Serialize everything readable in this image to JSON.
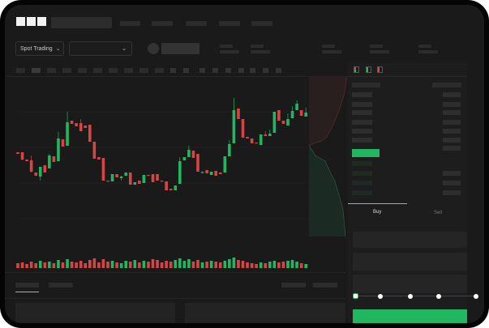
{
  "header": {
    "logo": "OKX"
  },
  "toolbar": {
    "market_type": "Spot Trading",
    "market_type_chevron": "⌄",
    "pair_chevron": "⌄"
  },
  "orderbook": {
    "view_icons": [
      "orderbook-both-icon",
      "orderbook-bids-icon",
      "orderbook-asks-icon"
    ]
  },
  "trade": {
    "tabs": [
      "Buy",
      "Sell"
    ],
    "active_tab": "Buy",
    "slider_percent": 0,
    "slider_stops": [
      0,
      25,
      50,
      75,
      100
    ]
  },
  "colors": {
    "up": "#22b660",
    "down": "#d64545",
    "background": "#1a1a1a",
    "accent": "#22b660"
  },
  "chart_data": {
    "type": "candlestick",
    "grid": true,
    "candles": [
      [
        118,
        116,
        118,
        116
      ],
      [
        118,
        109,
        118,
        108
      ],
      [
        109,
        107,
        109,
        107
      ],
      [
        108,
        94,
        114,
        93
      ],
      [
        93,
        89,
        93,
        89
      ],
      [
        88,
        100,
        100,
        83
      ],
      [
        102,
        93,
        102,
        93
      ],
      [
        98,
        114,
        116,
        98
      ],
      [
        113,
        106,
        113,
        106
      ],
      [
        107,
        135,
        143,
        107
      ],
      [
        134,
        125,
        134,
        125
      ],
      [
        126,
        155,
        168,
        126
      ],
      [
        157,
        153,
        157,
        153
      ],
      [
        154,
        150,
        154,
        150
      ],
      [
        154,
        144,
        159,
        144
      ],
      [
        151,
        148,
        151,
        148
      ],
      [
        152,
        131,
        152,
        131
      ],
      [
        131,
        110,
        131,
        110
      ],
      [
        112,
        109,
        112,
        109
      ],
      [
        111,
        83,
        111,
        83
      ],
      [
        83,
        82,
        83,
        82
      ],
      [
        82,
        91,
        91,
        82
      ],
      [
        91,
        87,
        91,
        87
      ],
      [
        86,
        88,
        89,
        83
      ],
      [
        89,
        93,
        93,
        89
      ],
      [
        93,
        78,
        93,
        78
      ],
      [
        78,
        81,
        81,
        78
      ],
      [
        83,
        79,
        83,
        79
      ],
      [
        80,
        90,
        90,
        80
      ],
      [
        90,
        89,
        90,
        89
      ],
      [
        91,
        81,
        91,
        81
      ],
      [
        91,
        83,
        91,
        83
      ],
      [
        83,
        82,
        83,
        82
      ],
      [
        82,
        71,
        82,
        71
      ],
      [
        73,
        71,
        73,
        71
      ],
      [
        71,
        77,
        77,
        71
      ],
      [
        79,
        107,
        112,
        79
      ],
      [
        108,
        112,
        112,
        108
      ],
      [
        112,
        121,
        126,
        112
      ],
      [
        120,
        111,
        120,
        111
      ],
      [
        116,
        94,
        116,
        94
      ],
      [
        93,
        93.5,
        95,
        92
      ],
      [
        96,
        92,
        96,
        92
      ],
      [
        90,
        94,
        94,
        90
      ],
      [
        95,
        89,
        95,
        89
      ],
      [
        93,
        91,
        93,
        91
      ],
      [
        93,
        113,
        113,
        93
      ],
      [
        113,
        128,
        133,
        113
      ],
      [
        129,
        170,
        185,
        129
      ],
      [
        172,
        159,
        172,
        159
      ],
      [
        159,
        136,
        159,
        136
      ],
      [
        137,
        135,
        137,
        135
      ],
      [
        135,
        129,
        135,
        129
      ],
      [
        130,
        129,
        130,
        129
      ],
      [
        127,
        140,
        140,
        127
      ],
      [
        140,
        138,
        144,
        138
      ],
      [
        138,
        141,
        146,
        138
      ],
      [
        142,
        168,
        168,
        142
      ],
      [
        170,
        157,
        170,
        157
      ],
      [
        157,
        153,
        157,
        153
      ],
      [
        151,
        159,
        166,
        151
      ],
      [
        160,
        169,
        175,
        160
      ],
      [
        170,
        178,
        182,
        170
      ],
      [
        170,
        163,
        170,
        163
      ],
      [
        162,
        167,
        173,
        162
      ]
    ],
    "candle_fields": [
      "open",
      "close",
      "high",
      "low"
    ],
    "volume": [
      6,
      7,
      5,
      8,
      6,
      9,
      7,
      8,
      6,
      10,
      7,
      11,
      8,
      7,
      9,
      6,
      10,
      12,
      7,
      11,
      8,
      9,
      7,
      6,
      9,
      8,
      10,
      7,
      9,
      8,
      11,
      10,
      7,
      9,
      8,
      10,
      12,
      9,
      11,
      8,
      10,
      7,
      8,
      9,
      8,
      7,
      9,
      11,
      13,
      10,
      9,
      7,
      6,
      5,
      7,
      6,
      8,
      9,
      7,
      8,
      9,
      10,
      8,
      6,
      5
    ]
  }
}
